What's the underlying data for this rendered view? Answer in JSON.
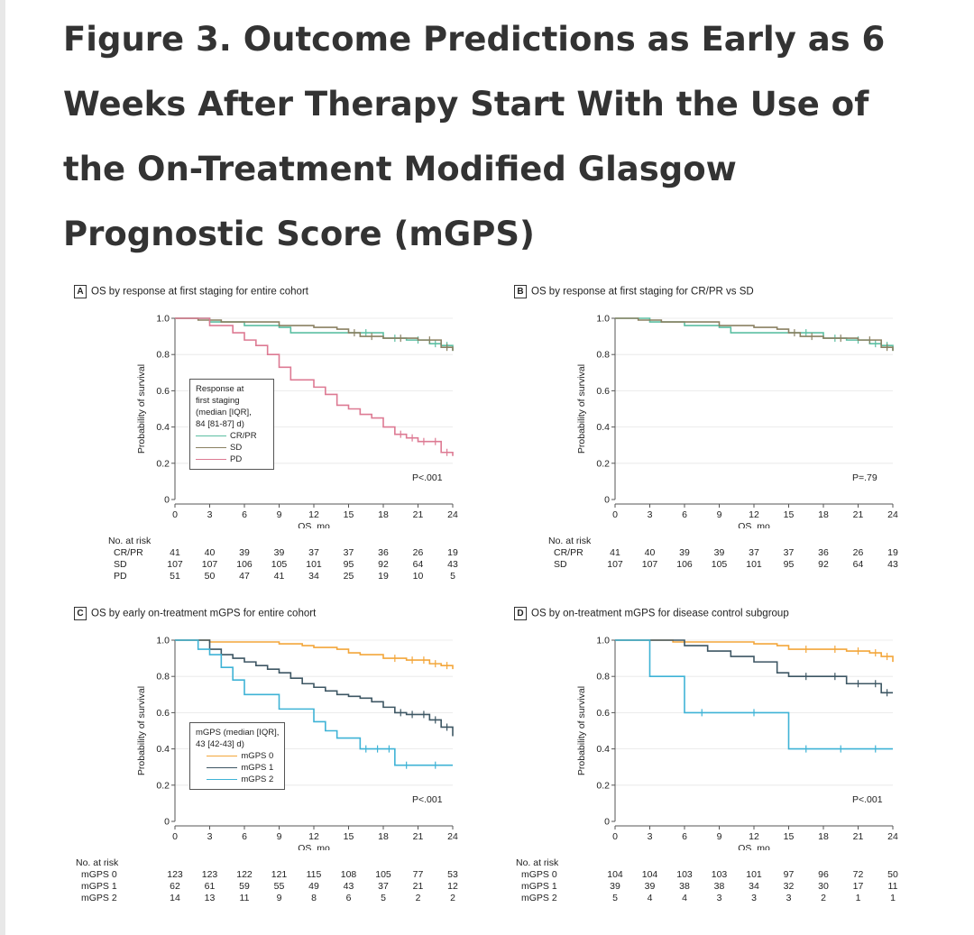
{
  "figure": {
    "title": "Figure 3.  Outcome Predictions as Early as 6 Weeks After Therapy Start With the Use of the On-Treatment Modified Glasgow Prognostic Score (mGPS)"
  },
  "colors": {
    "teal": "#5cbfa2",
    "olive": "#8a8062",
    "pink": "#dd7a93",
    "orange": "#f3a63a",
    "slate": "#3d5663",
    "cyan": "#3fb3d6"
  },
  "chart_data": [
    {
      "type": "line",
      "letter": "A",
      "title": "OS by response at first staging for entire cohort",
      "xlabel": "OS, mo",
      "ylabel": "Probability of survival",
      "xlim": [
        0,
        24
      ],
      "ylim": [
        0,
        1.0
      ],
      "xticks": [
        "0",
        "3",
        "6",
        "9",
        "12",
        "15",
        "18",
        "21",
        "24"
      ],
      "yticks": [
        "0",
        "0.2",
        "0.4",
        "0.6",
        "0.8",
        "1.0"
      ],
      "pvalue": "P<.001",
      "legend_title": [
        "Response at",
        "first staging",
        "(median [IQR],",
        "84 [81-87] d)"
      ],
      "series": [
        {
          "name": "CR/PR",
          "color": "#5cbfa2",
          "x": [
            0,
            3,
            6,
            9,
            10,
            12,
            15,
            18,
            20,
            22,
            23,
            24
          ],
          "y": [
            1.0,
            0.98,
            0.96,
            0.95,
            0.92,
            0.92,
            0.92,
            0.89,
            0.88,
            0.86,
            0.85,
            0.82
          ]
        },
        {
          "name": "SD",
          "color": "#8a8062",
          "x": [
            0,
            2,
            4,
            6,
            9,
            12,
            14,
            15,
            16,
            18,
            21,
            23,
            24
          ],
          "y": [
            1.0,
            0.99,
            0.98,
            0.98,
            0.96,
            0.95,
            0.94,
            0.92,
            0.9,
            0.89,
            0.88,
            0.84,
            0.82
          ]
        },
        {
          "name": "PD",
          "color": "#dd7a93",
          "x": [
            0,
            3,
            5,
            6,
            7,
            8,
            9,
            10,
            12,
            13,
            14,
            15,
            16,
            17,
            18,
            19,
            20,
            21,
            22,
            23,
            24
          ],
          "y": [
            1.0,
            0.96,
            0.92,
            0.88,
            0.85,
            0.8,
            0.73,
            0.66,
            0.62,
            0.58,
            0.52,
            0.5,
            0.47,
            0.45,
            0.4,
            0.36,
            0.34,
            0.32,
            0.32,
            0.26,
            0.24
          ]
        }
      ],
      "risk_table": {
        "header": "No. at risk",
        "rows": [
          {
            "label": "CR/PR",
            "values": [
              "41",
              "40",
              "39",
              "39",
              "37",
              "37",
              "36",
              "26",
              "19"
            ]
          },
          {
            "label": "SD",
            "values": [
              "107",
              "107",
              "106",
              "105",
              "101",
              "95",
              "92",
              "64",
              "43"
            ]
          },
          {
            "label": "PD",
            "values": [
              "51",
              "50",
              "47",
              "41",
              "34",
              "25",
              "19",
              "10",
              "5"
            ]
          }
        ]
      }
    },
    {
      "type": "line",
      "letter": "B",
      "title": "OS by response at first staging for CR/PR vs SD",
      "xlabel": "OS, mo",
      "ylabel": "Probability of survival",
      "xlim": [
        0,
        24
      ],
      "ylim": [
        0,
        1.0
      ],
      "xticks": [
        "0",
        "3",
        "6",
        "9",
        "12",
        "15",
        "18",
        "21",
        "24"
      ],
      "yticks": [
        "0",
        "0.2",
        "0.4",
        "0.6",
        "0.8",
        "1.0"
      ],
      "pvalue": "P=.79",
      "series": [
        {
          "name": "CR/PR",
          "color": "#5cbfa2",
          "x": [
            0,
            3,
            6,
            9,
            10,
            12,
            15,
            18,
            20,
            22,
            23,
            24
          ],
          "y": [
            1.0,
            0.98,
            0.96,
            0.95,
            0.92,
            0.92,
            0.92,
            0.89,
            0.88,
            0.86,
            0.85,
            0.82
          ]
        },
        {
          "name": "SD",
          "color": "#8a8062",
          "x": [
            0,
            2,
            4,
            6,
            9,
            12,
            14,
            15,
            16,
            18,
            21,
            23,
            24
          ],
          "y": [
            1.0,
            0.99,
            0.98,
            0.98,
            0.96,
            0.95,
            0.94,
            0.92,
            0.9,
            0.89,
            0.88,
            0.84,
            0.82
          ]
        }
      ],
      "risk_table": {
        "header": "No. at risk",
        "rows": [
          {
            "label": "CR/PR",
            "values": [
              "41",
              "40",
              "39",
              "39",
              "37",
              "37",
              "36",
              "26",
              "19"
            ]
          },
          {
            "label": "SD",
            "values": [
              "107",
              "107",
              "106",
              "105",
              "101",
              "95",
              "92",
              "64",
              "43"
            ]
          }
        ]
      }
    },
    {
      "type": "line",
      "letter": "C",
      "title": "OS by early on-treatment mGPS for entire cohort",
      "xlabel": "OS, mo",
      "ylabel": "Probability of survival",
      "xlim": [
        0,
        24
      ],
      "ylim": [
        0,
        1.0
      ],
      "xticks": [
        "0",
        "3",
        "6",
        "9",
        "12",
        "15",
        "18",
        "21",
        "24"
      ],
      "yticks": [
        "0",
        "0.2",
        "0.4",
        "0.6",
        "0.8",
        "1.0"
      ],
      "pvalue": "P<.001",
      "legend_title": [
        "mGPS (median [IQR],",
        "43 [42-43] d)"
      ],
      "series": [
        {
          "name": "mGPS 0",
          "color": "#f3a63a",
          "x": [
            0,
            3,
            6,
            9,
            11,
            12,
            14,
            15,
            16,
            18,
            20,
            21,
            22,
            23,
            24
          ],
          "y": [
            1.0,
            0.99,
            0.99,
            0.98,
            0.97,
            0.96,
            0.95,
            0.93,
            0.92,
            0.9,
            0.89,
            0.89,
            0.87,
            0.86,
            0.84
          ]
        },
        {
          "name": "mGPS 1",
          "color": "#3d5663",
          "x": [
            0,
            3,
            4,
            5,
            6,
            7,
            8,
            9,
            10,
            11,
            12,
            13,
            14,
            15,
            16,
            17,
            18,
            19,
            20,
            21,
            22,
            23,
            24
          ],
          "y": [
            1.0,
            0.95,
            0.92,
            0.9,
            0.88,
            0.86,
            0.84,
            0.82,
            0.79,
            0.76,
            0.74,
            0.72,
            0.7,
            0.69,
            0.68,
            0.66,
            0.63,
            0.6,
            0.59,
            0.59,
            0.56,
            0.52,
            0.47
          ]
        },
        {
          "name": "mGPS 2",
          "color": "#3fb3d6",
          "x": [
            0,
            2,
            3,
            4,
            5,
            6,
            7,
            9,
            10,
            12,
            13,
            14,
            15,
            16,
            17,
            18,
            19,
            21,
            24
          ],
          "y": [
            1.0,
            0.95,
            0.92,
            0.85,
            0.78,
            0.7,
            0.7,
            0.62,
            0.62,
            0.55,
            0.5,
            0.46,
            0.46,
            0.4,
            0.4,
            0.4,
            0.31,
            0.31,
            0.31
          ]
        }
      ],
      "risk_table": {
        "header": "No. at risk",
        "rows": [
          {
            "label": "mGPS 0",
            "values": [
              "123",
              "123",
              "122",
              "121",
              "115",
              "108",
              "105",
              "77",
              "53"
            ]
          },
          {
            "label": "mGPS 1",
            "values": [
              "62",
              "61",
              "59",
              "55",
              "49",
              "43",
              "37",
              "21",
              "12"
            ]
          },
          {
            "label": "mGPS 2",
            "values": [
              "14",
              "13",
              "11",
              "9",
              "8",
              "6",
              "5",
              "2",
              "2"
            ]
          }
        ]
      }
    },
    {
      "type": "line",
      "letter": "D",
      "title": "OS by on-treatment mGPS for disease control subgroup",
      "xlabel": "OS, mo",
      "ylabel": "Probability of survival",
      "xlim": [
        0,
        24
      ],
      "ylim": [
        0,
        1.0
      ],
      "xticks": [
        "0",
        "3",
        "6",
        "9",
        "12",
        "15",
        "18",
        "21",
        "24"
      ],
      "yticks": [
        "0",
        "0.2",
        "0.4",
        "0.6",
        "0.8",
        "1.0"
      ],
      "pvalue": "P<.001",
      "series": [
        {
          "name": "mGPS 0",
          "color": "#f3a63a",
          "x": [
            0,
            3,
            5,
            9,
            12,
            14,
            15,
            18,
            20,
            22,
            23,
            24
          ],
          "y": [
            1.0,
            1.0,
            0.99,
            0.99,
            0.98,
            0.97,
            0.95,
            0.95,
            0.94,
            0.93,
            0.91,
            0.88
          ]
        },
        {
          "name": "mGPS 1",
          "color": "#3d5663",
          "x": [
            0,
            3,
            6,
            8,
            10,
            12,
            14,
            15,
            18,
            20,
            22,
            23,
            24
          ],
          "y": [
            1.0,
            1.0,
            0.97,
            0.94,
            0.91,
            0.88,
            0.82,
            0.8,
            0.8,
            0.76,
            0.76,
            0.71,
            0.71
          ]
        },
        {
          "name": "mGPS 2",
          "color": "#3fb3d6",
          "x": [
            0,
            3,
            6,
            9,
            15,
            18,
            21,
            24
          ],
          "y": [
            1.0,
            0.8,
            0.6,
            0.6,
            0.4,
            0.4,
            0.4,
            0.4
          ]
        }
      ],
      "risk_table": {
        "header": "No. at risk",
        "rows": [
          {
            "label": "mGPS 0",
            "values": [
              "104",
              "104",
              "103",
              "103",
              "101",
              "97",
              "96",
              "72",
              "50"
            ]
          },
          {
            "label": "mGPS 1",
            "values": [
              "39",
              "39",
              "38",
              "38",
              "34",
              "32",
              "30",
              "17",
              "11"
            ]
          },
          {
            "label": "mGPS 2",
            "values": [
              "5",
              "4",
              "4",
              "3",
              "3",
              "3",
              "2",
              "1",
              "1"
            ]
          }
        ]
      }
    }
  ]
}
